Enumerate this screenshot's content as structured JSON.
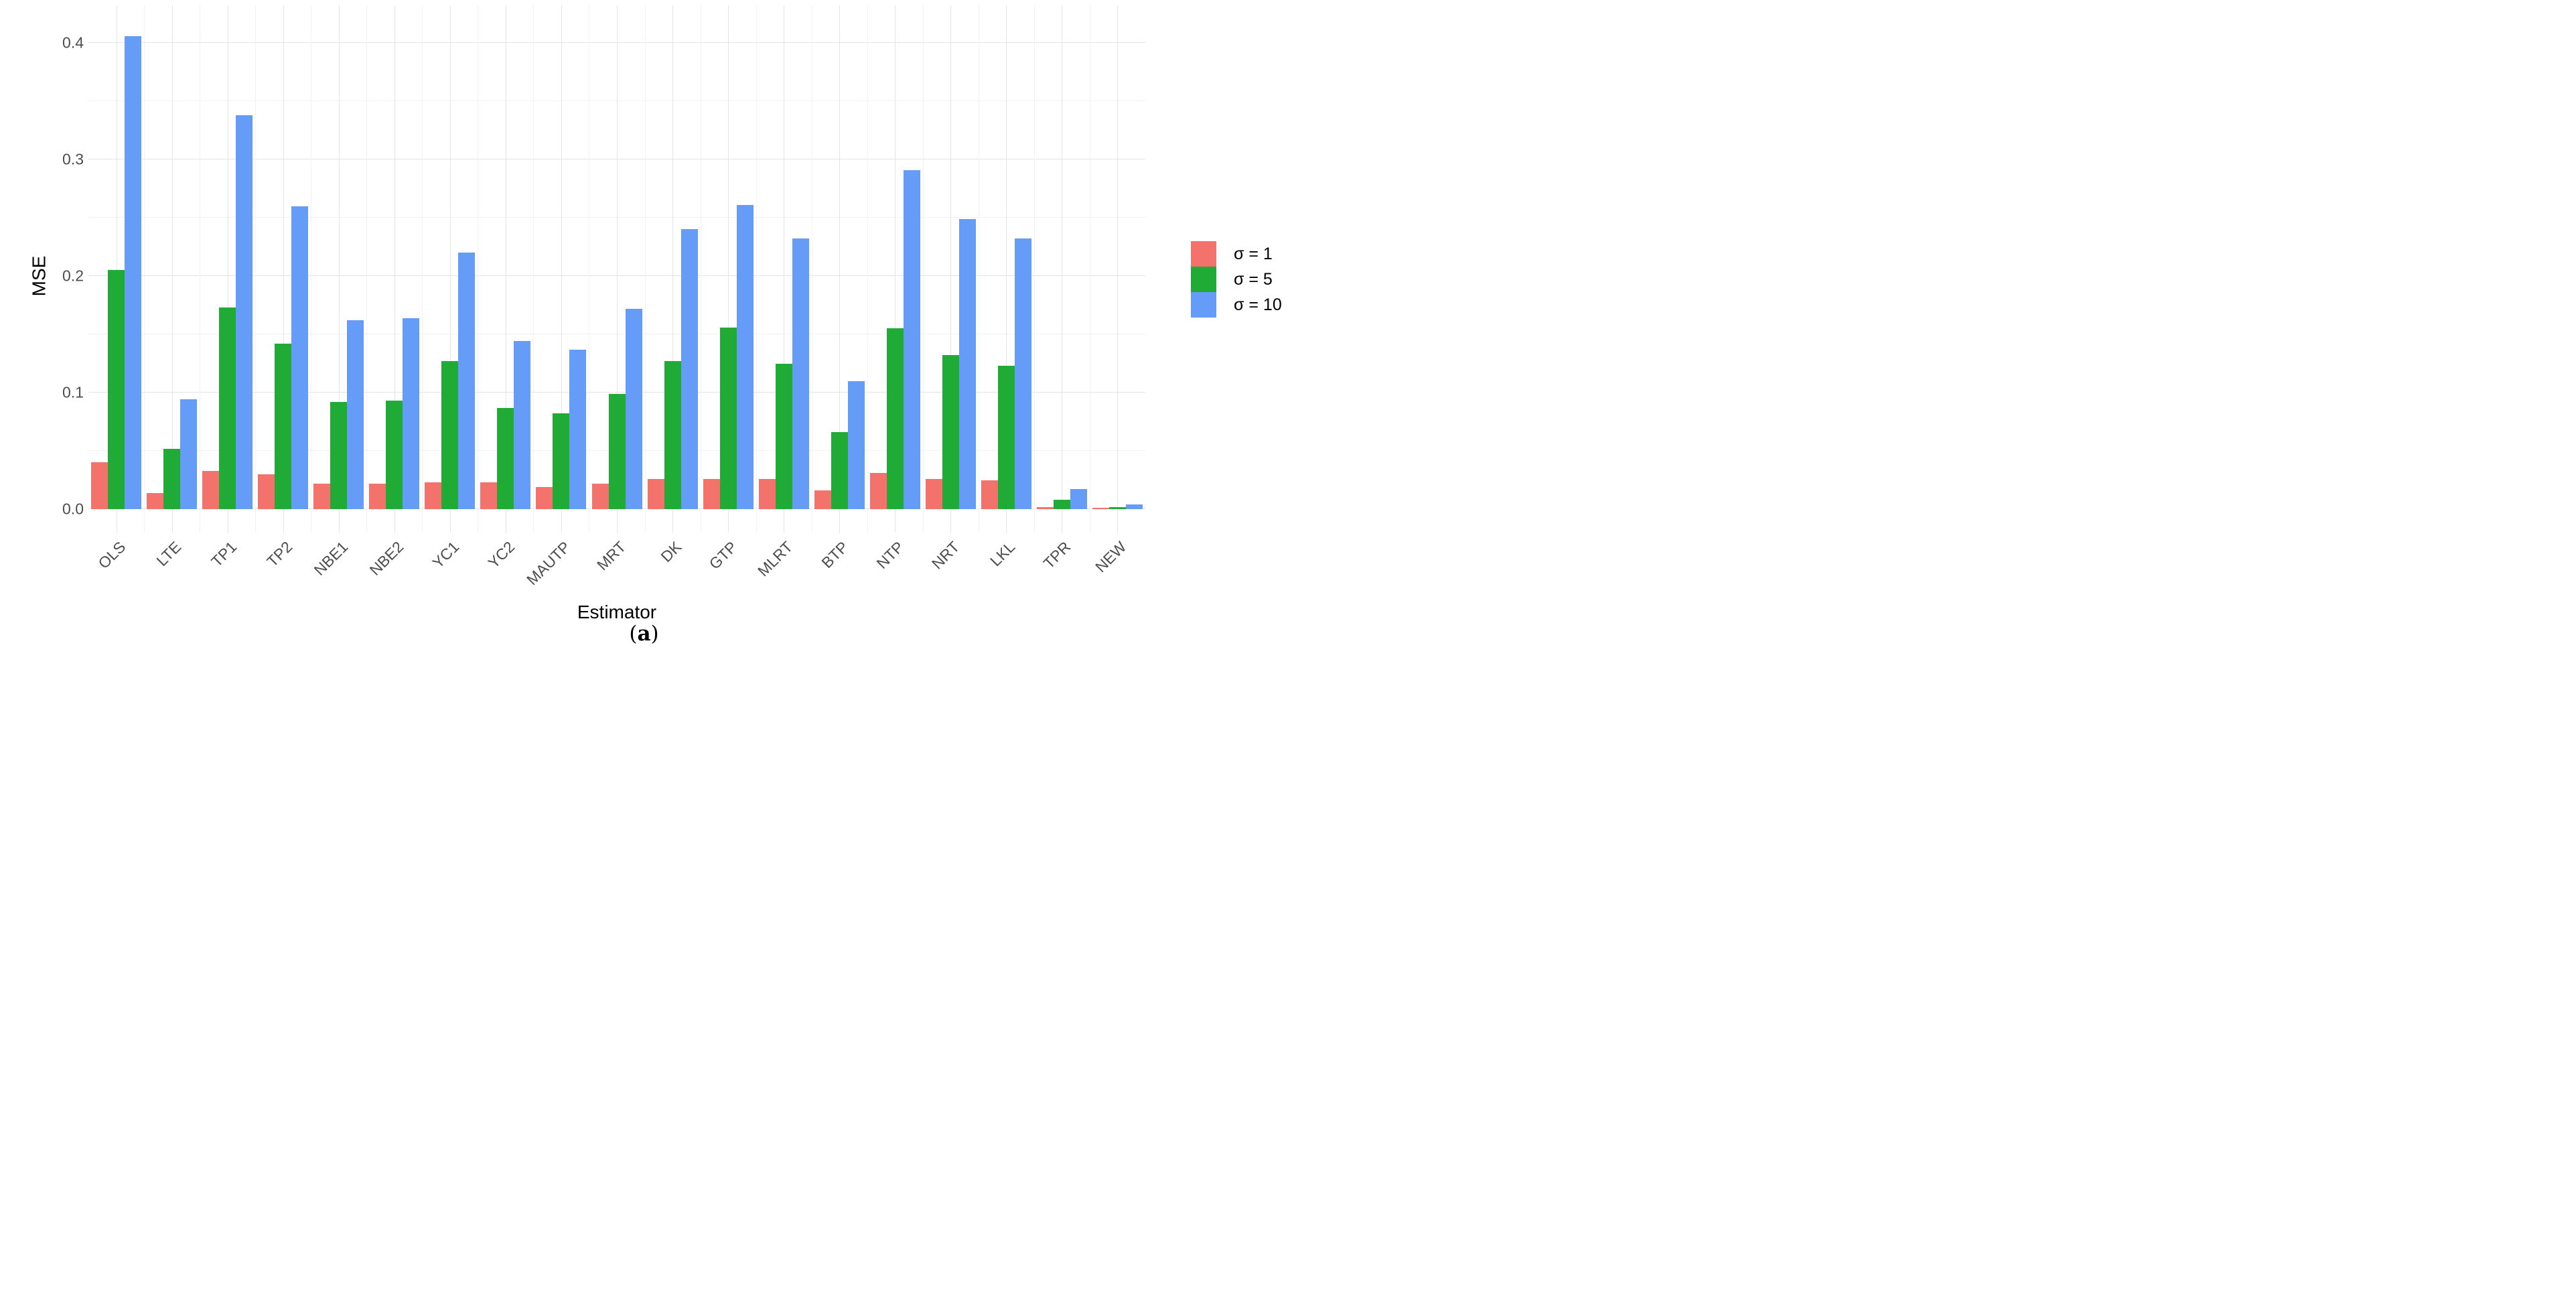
{
  "figure": {
    "caption_letter": "a"
  },
  "chart_data": {
    "type": "bar",
    "title": "",
    "xlabel": "Estimator",
    "ylabel": "MSE",
    "categories": [
      "OLS",
      "LTE",
      "TP1",
      "TP2",
      "NBE1",
      "NBE2",
      "YC1",
      "YC2",
      "MAUTP",
      "MRT",
      "DK",
      "GTP",
      "MLRT",
      "BTP",
      "NTP",
      "NRT",
      "LKL",
      "TPR",
      "NEW"
    ],
    "series": [
      {
        "name": "σ = 1",
        "color": "#f4726c",
        "values": [
          0.04,
          0.014,
          0.033,
          0.03,
          0.022,
          0.022,
          0.023,
          0.023,
          0.019,
          0.022,
          0.026,
          0.026,
          0.026,
          0.016,
          0.031,
          0.026,
          0.025,
          0.002,
          0.001
        ]
      },
      {
        "name": "σ = 5",
        "color": "#1fab35",
        "values": [
          0.205,
          0.052,
          0.173,
          0.142,
          0.092,
          0.093,
          0.127,
          0.087,
          0.082,
          0.099,
          0.127,
          0.156,
          0.125,
          0.066,
          0.155,
          0.132,
          0.123,
          0.008,
          0.002
        ]
      },
      {
        "name": "σ = 10",
        "color": "#649cf8",
        "values": [
          0.406,
          0.094,
          0.338,
          0.26,
          0.162,
          0.164,
          0.22,
          0.144,
          0.137,
          0.172,
          0.24,
          0.261,
          0.232,
          0.11,
          0.291,
          0.249,
          0.232,
          0.017,
          0.004
        ]
      }
    ],
    "ylim": [
      0,
      0.4
    ],
    "yticks": [
      "0.0",
      "0.1",
      "0.2",
      "0.3",
      "0.4"
    ],
    "ytick_values": [
      0.0,
      0.1,
      0.2,
      0.3,
      0.4
    ],
    "minor_grid_values": [
      0.05,
      0.15,
      0.25,
      0.35
    ],
    "grid": "major and minor, light gray on white",
    "legend_position": "right"
  }
}
